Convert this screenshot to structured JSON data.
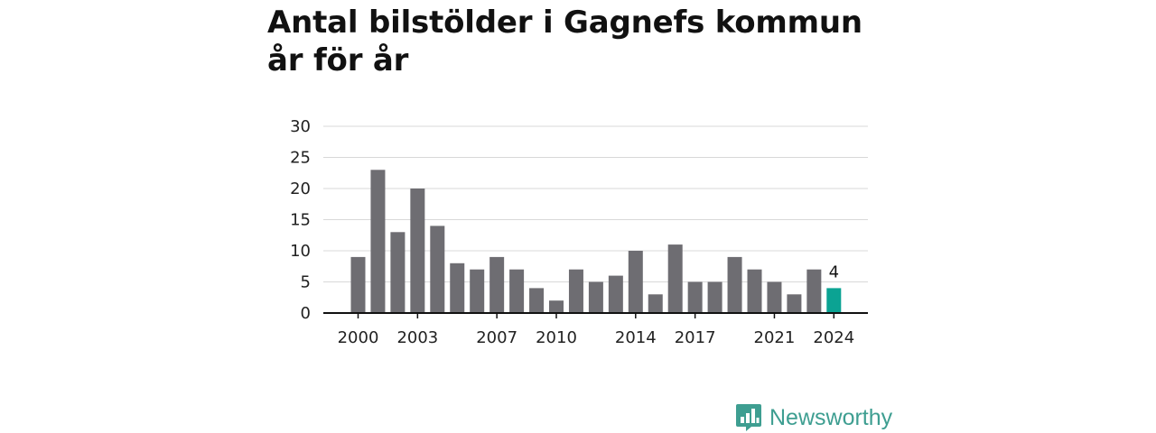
{
  "title": "Antal bilstölder i Gagnefs kommun år för år",
  "brand": "Newsworthy",
  "colors": {
    "bar": "#6e6d72",
    "highlight": "#0ba393",
    "grid": "#d8d8d8",
    "axis": "#111111",
    "brand": "#3e9e91"
  },
  "chart_data": {
    "type": "bar",
    "categories": [
      "2000",
      "2001",
      "2002",
      "2003",
      "2004",
      "2005",
      "2006",
      "2007",
      "2008",
      "2009",
      "2010",
      "2011",
      "2012",
      "2013",
      "2014",
      "2015",
      "2016",
      "2017",
      "2018",
      "2019",
      "2020",
      "2021",
      "2022",
      "2023",
      "2024"
    ],
    "values": [
      9,
      23,
      13,
      20,
      14,
      8,
      7,
      9,
      7,
      4,
      2,
      7,
      5,
      6,
      10,
      3,
      11,
      5,
      5,
      9,
      7,
      5,
      3,
      7,
      4
    ],
    "x_tick_labels": [
      "2000",
      "2003",
      "2007",
      "2010",
      "2014",
      "2017",
      "2021",
      "2024"
    ],
    "y_ticks": [
      0,
      5,
      10,
      15,
      20,
      25,
      30
    ],
    "ylim": [
      0,
      30
    ],
    "highlight_category": "2024",
    "highlight_label": "4",
    "grid": true,
    "xlabel": "",
    "ylabel": ""
  }
}
